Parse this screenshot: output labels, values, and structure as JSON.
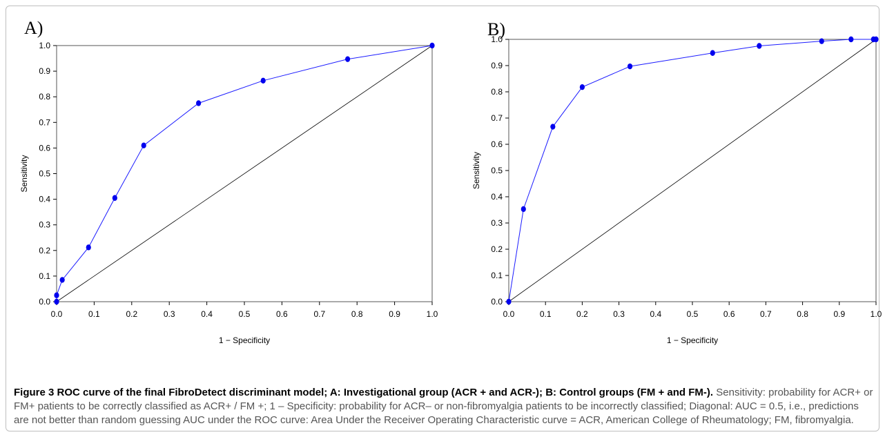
{
  "figure": {
    "caption_title": "Figure 3 ROC curve of the final FibroDetect discriminant model; A: Investigational group (ACR + and ACR-); B: Control groups (FM + and FM-).",
    "caption_text": "Sensitivity: probability for ACR+ or FM+ patients to be correctly classified as ACR+ / FM +; 1 – Specificity: probability for ACR– or non-fibromyalgia patients to be incorrectly classified; Diagonal: AUC = 0.5, i.e., predictions are not better than random guessing AUC under the ROC curve: Area Under the Receiver Operating Characteristic curve = ACR, American College of Rheumatology; FM, fibromyalgia."
  },
  "colors": {
    "curve": "#1a1aff",
    "point": "#0000ee",
    "diagonal": "#000000"
  },
  "chart_data": [
    {
      "panel": "A)",
      "type": "line",
      "xlabel": "1 − Specificity",
      "ylabel": "Sensitivity",
      "xlim": [
        0,
        1
      ],
      "ylim": [
        0,
        1
      ],
      "ticks": [
        "0.0",
        "0.1",
        "0.2",
        "0.3",
        "0.4",
        "0.5",
        "0.6",
        "0.7",
        "0.8",
        "0.9",
        "1.0"
      ],
      "grid": false,
      "series": [
        {
          "x": [
            0,
            0,
            0.015,
            0.085,
            0.155,
            0.232,
            0.378,
            0.55,
            0.775,
            1.0
          ],
          "y": [
            0,
            0.025,
            0.085,
            0.212,
            0.405,
            0.61,
            0.775,
            0.863,
            0.947,
            1.0
          ]
        }
      ],
      "reference_line": [
        [
          0,
          0
        ],
        [
          1,
          1
        ]
      ]
    },
    {
      "panel": "B)",
      "type": "line",
      "xlabel": "1 − Specificity",
      "ylabel": "Sensitivity",
      "xlim": [
        0,
        1
      ],
      "ylim": [
        0,
        1
      ],
      "ticks": [
        "0.0",
        "0.1",
        "0.2",
        "0.3",
        "0.4",
        "0.5",
        "0.6",
        "0.7",
        "0.8",
        "0.9",
        "1.0"
      ],
      "grid": false,
      "series": [
        {
          "x": [
            0,
            0.04,
            0.12,
            0.2,
            0.33,
            0.555,
            0.682,
            0.852,
            0.932,
            0.993,
            1.0
          ],
          "y": [
            0,
            0.353,
            0.667,
            0.818,
            0.897,
            0.948,
            0.975,
            0.993,
            1.0,
            1.0,
            1.0
          ]
        }
      ],
      "reference_line": [
        [
          0,
          0
        ],
        [
          1,
          1
        ]
      ]
    }
  ]
}
